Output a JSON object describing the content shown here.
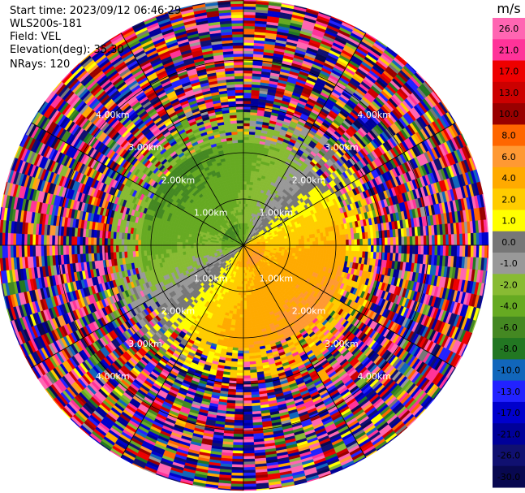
{
  "info": {
    "start_time": "Start time: 2023/09/12 06:46:29",
    "instrument": "WLS200s-181",
    "field": "Field: VEL",
    "elevation": "Elevation(deg): 35.30",
    "nrays": "NRays: 120"
  },
  "chart_data": {
    "type": "heatmap",
    "projection": "polar",
    "field": "VEL",
    "nrays": 120,
    "elevation_deg": 35.3,
    "range_rings_km": [
      1.0,
      2.0,
      3.0,
      4.0
    ],
    "ring_labels": [
      "1.00km",
      "2.00km",
      "3.00km",
      "4.00km"
    ],
    "colorbar": {
      "unit": "m/s",
      "ticks": [
        "26.0",
        "21.0",
        "17.0",
        "13.0",
        "10.0",
        "8.0",
        "6.0",
        "4.0",
        "2.0",
        "1.0",
        "0.0",
        "-1.0",
        "-2.0",
        "-4.0",
        "-6.0",
        "-8.0",
        "-10.0",
        "-13.0",
        "-17.0",
        "-21.0",
        "-26.0",
        "-30.0"
      ],
      "colors": [
        "#ff66b2",
        "#ff3399",
        "#ee0000",
        "#cc0000",
        "#990000",
        "#ff6600",
        "#ff9933",
        "#ffaa00",
        "#ffcc00",
        "#ffff00",
        "#777777",
        "#999999",
        "#88bb33",
        "#66aa22",
        "#448822",
        "#227722",
        "#1166bb",
        "#2222ff",
        "#0000cc",
        "#000099",
        "#101070",
        "#080850"
      ]
    }
  }
}
